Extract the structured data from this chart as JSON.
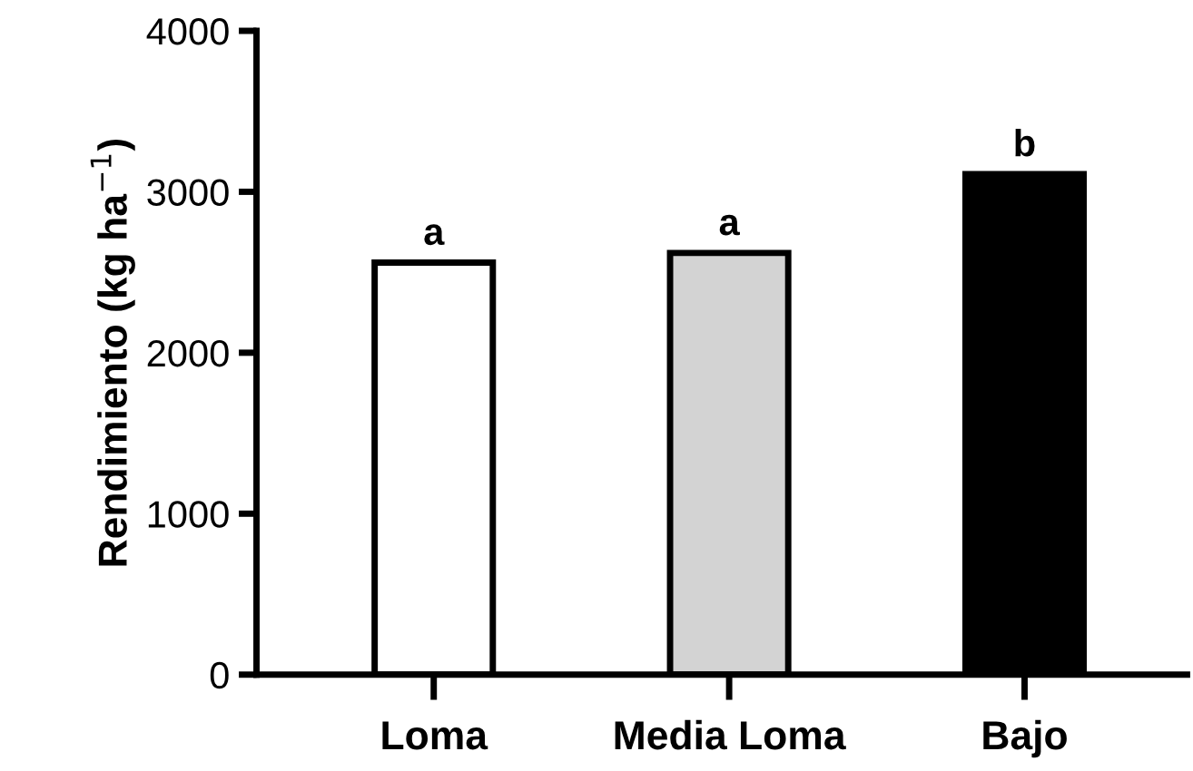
{
  "chart_data": {
    "type": "bar",
    "ylabel": "Rendimiento (kg ha$^{−1}$)",
    "categories": [
      "Loma",
      "Media Loma",
      "Bajo"
    ],
    "values": [
      2560,
      2620,
      3110
    ],
    "colors": [
      "#ffffff",
      "#d3d3d3",
      "#000000"
    ],
    "ylim": [
      0,
      4000
    ],
    "yticks": [
      0,
      1000,
      2000,
      3000,
      4000
    ],
    "grid": false,
    "annotations": [
      {
        "text": "a",
        "x": "Loma",
        "y": 2560
      },
      {
        "text": "a",
        "x": "Media Loma",
        "y": 2620
      },
      {
        "text": "b",
        "x": "Bajo",
        "y": 3110
      }
    ]
  }
}
